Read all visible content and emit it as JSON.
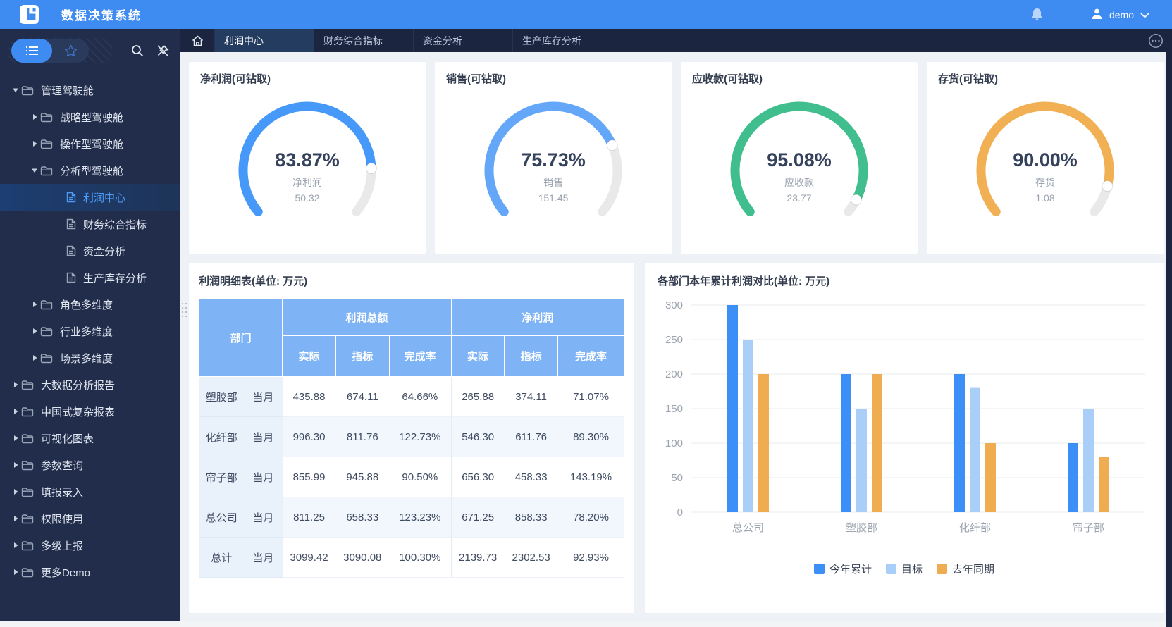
{
  "app": {
    "title": "数据决策系统",
    "user": "demo"
  },
  "colors": {
    "accent": "#3E8BF2",
    "header_table_blue": "#7EB3F5",
    "positive": "#2BBF8E",
    "negative": "#F65A3C",
    "sidebar_bg": "#212D4B",
    "tabbar_bg": "#1B2540"
  },
  "icons": {
    "logo": "finereport-logo",
    "bell": "notification-bell",
    "user": "person",
    "caret": "chevron-down",
    "list": "list-menu",
    "star": "star-outline",
    "search": "magnifier",
    "pin": "pin-off",
    "home": "house",
    "more": "circled-ellipsis",
    "folder": "folder-outline",
    "doc": "document-page",
    "handle": "drag-dots"
  },
  "tabbar": {
    "tabs": [
      {
        "label": "利润中心",
        "active": true
      },
      {
        "label": "财务综合指标",
        "active": false
      },
      {
        "label": "资金分析",
        "active": false
      },
      {
        "label": "生产库存分析",
        "active": false
      }
    ]
  },
  "sidebar": {
    "items": [
      {
        "label": "管理驾驶舱",
        "level": 1,
        "kind": "folder",
        "arrow": "down",
        "active": false
      },
      {
        "label": "战略型驾驶舱",
        "level": 2,
        "kind": "folder",
        "arrow": "right",
        "active": false
      },
      {
        "label": "操作型驾驶舱",
        "level": 2,
        "kind": "folder",
        "arrow": "right",
        "active": false
      },
      {
        "label": "分析型驾驶舱",
        "level": 2,
        "kind": "folder",
        "arrow": "down",
        "active": false
      },
      {
        "label": "利润中心",
        "level": 3,
        "kind": "doc",
        "arrow": null,
        "active": true
      },
      {
        "label": "财务综合指标",
        "level": 3,
        "kind": "doc",
        "arrow": null,
        "active": false
      },
      {
        "label": "资金分析",
        "level": 3,
        "kind": "doc",
        "arrow": null,
        "active": false
      },
      {
        "label": "生产库存分析",
        "level": 3,
        "kind": "doc",
        "arrow": null,
        "active": false
      },
      {
        "label": "角色多维度",
        "level": 2,
        "kind": "folder",
        "arrow": "right",
        "active": false
      },
      {
        "label": "行业多维度",
        "level": 2,
        "kind": "folder",
        "arrow": "right",
        "active": false
      },
      {
        "label": "场景多维度",
        "level": 2,
        "kind": "folder",
        "arrow": "right",
        "active": false
      },
      {
        "label": "大数据分析报告",
        "level": 1,
        "kind": "folder",
        "arrow": "right",
        "active": false
      },
      {
        "label": "中国式复杂报表",
        "level": 1,
        "kind": "folder",
        "arrow": "right",
        "active": false
      },
      {
        "label": "可视化图表",
        "level": 1,
        "kind": "folder",
        "arrow": "right",
        "active": false
      },
      {
        "label": "参数查询",
        "level": 1,
        "kind": "folder",
        "arrow": "right",
        "active": false
      },
      {
        "label": "填报录入",
        "level": 1,
        "kind": "folder",
        "arrow": "right",
        "active": false
      },
      {
        "label": "权限使用",
        "level": 1,
        "kind": "folder",
        "arrow": "right",
        "active": false
      },
      {
        "label": "多级上报",
        "level": 1,
        "kind": "folder",
        "arrow": "right",
        "active": false
      },
      {
        "label": "更多Demo",
        "level": 1,
        "kind": "folder",
        "arrow": "right",
        "active": false
      }
    ]
  },
  "gauges": [
    {
      "title": "净利润(可钻取)",
      "percent": 83.87,
      "percent_label": "83.87%",
      "label": "净利润",
      "value": "50.32",
      "color": "#4699F8"
    },
    {
      "title": "销售(可钻取)",
      "percent": 75.73,
      "percent_label": "75.73%",
      "label": "销售",
      "value": "151.45",
      "color": "#64A7F8"
    },
    {
      "title": "应收款(可钻取)",
      "percent": 95.08,
      "percent_label": "95.08%",
      "label": "应收款",
      "value": "23.77",
      "color": "#40BE8E"
    },
    {
      "title": "存货(可钻取)",
      "percent": 90.0,
      "percent_label": "90.00%",
      "label": "存货",
      "value": "1.08",
      "color": "#F2B055"
    }
  ],
  "table": {
    "title": "利润明细表(单位: 万元)",
    "dept_header": "部门",
    "groups": [
      "利润总额",
      "净利润"
    ],
    "sub_headers": [
      "实际",
      "指标",
      "完成率"
    ],
    "rows": [
      {
        "dept": "塑胶部",
        "period": "当月",
        "profit_total": {
          "actual": "435.88",
          "target": "674.11",
          "rate": "64.66%",
          "rate_tone": "red"
        },
        "net_profit": {
          "actual": "265.88",
          "target": "374.11",
          "rate": "71.07%",
          "rate_tone": "red"
        }
      },
      {
        "dept": "化纤部",
        "period": "当月",
        "profit_total": {
          "actual": "996.30",
          "target": "811.76",
          "rate": "122.73%",
          "rate_tone": "green"
        },
        "net_profit": {
          "actual": "546.30",
          "target": "611.76",
          "rate": "89.30%",
          "rate_tone": "red"
        }
      },
      {
        "dept": "帘子部",
        "period": "当月",
        "profit_total": {
          "actual": "855.99",
          "target": "945.88",
          "rate": "90.50%",
          "rate_tone": "red"
        },
        "net_profit": {
          "actual": "656.30",
          "target": "458.33",
          "rate": "143.19%",
          "rate_tone": "green"
        }
      },
      {
        "dept": "总公司",
        "period": "当月",
        "profit_total": {
          "actual": "811.25",
          "target": "658.33",
          "rate": "123.23%",
          "rate_tone": "green"
        },
        "net_profit": {
          "actual": "671.25",
          "target": "858.33",
          "rate": "78.20%",
          "rate_tone": "red"
        }
      },
      {
        "dept": "总计",
        "period": "当月",
        "profit_total": {
          "actual": "3099.42",
          "target": "3090.08",
          "rate": "100.30%",
          "rate_tone": "green"
        },
        "net_profit": {
          "actual": "2139.73",
          "target": "2302.53",
          "rate": "92.93%",
          "rate_tone": "red"
        }
      }
    ]
  },
  "chart_data": {
    "type": "bar",
    "title": "各部门本年累计利润对比(单位: 万元)",
    "categories": [
      "总公司",
      "塑胶部",
      "化纤部",
      "帘子部"
    ],
    "series": [
      {
        "name": "今年累计",
        "color": "#3D8FF8",
        "values": [
          300,
          200,
          200,
          100
        ]
      },
      {
        "name": "目标",
        "color": "#A9CEF8",
        "values": [
          250,
          150,
          180,
          150
        ]
      },
      {
        "name": "去年同期",
        "color": "#F0AC51",
        "values": [
          200,
          200,
          100,
          80
        ]
      }
    ],
    "xlabel": "",
    "ylabel": "",
    "ylim": [
      0,
      300
    ],
    "yticks": [
      0,
      50,
      100,
      150,
      200,
      250,
      300
    ],
    "grid": true,
    "legend_position": "bottom"
  }
}
